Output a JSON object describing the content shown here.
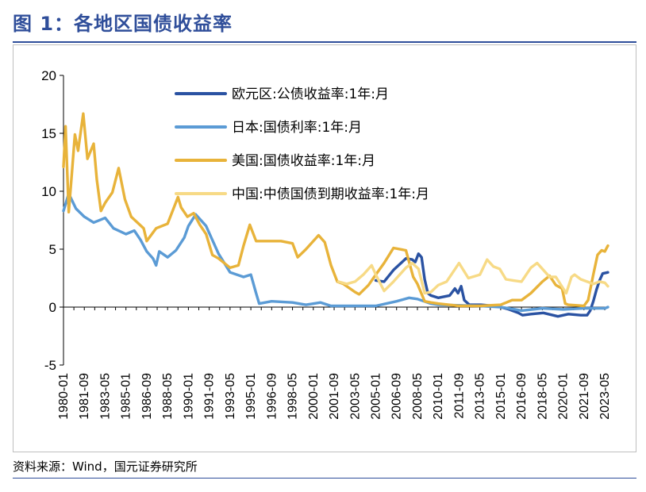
{
  "figure": {
    "title": "图 1：各地区国债收益率",
    "source": "资料来源：Wind，国元证券研究所"
  },
  "chart_data": {
    "type": "line",
    "x_tick_labels": [
      "1980-01",
      "1981-09",
      "1983-05",
      "1985-01",
      "1986-09",
      "1988-05",
      "1990-01",
      "1991-09",
      "1993-05",
      "1995-01",
      "1996-09",
      "1998-05",
      "2000-01",
      "2001-09",
      "2003-05",
      "2005-01",
      "2006-09",
      "2008-05",
      "2010-01",
      "2011-09",
      "2013-05",
      "2015-01",
      "2016-09",
      "2018-05",
      "2020-01",
      "2021-09",
      "2023-05"
    ],
    "y_ticks": [
      20,
      15,
      10,
      5,
      0,
      -5
    ],
    "ylim": [
      -5,
      20
    ],
    "xlim": [
      "1980-01",
      "2023-08"
    ],
    "grid": false,
    "legend_position": "top-right",
    "series": [
      {
        "name": "欧元区:公债收益率:1年:月",
        "color": "#2a52a2",
        "points": [
          [
            "2005-01",
            2.3
          ],
          [
            "2005-09",
            2.2
          ],
          [
            "2006-06",
            3.2
          ],
          [
            "2007-06",
            4.2
          ],
          [
            "2007-12",
            4.1
          ],
          [
            "2008-03",
            3.9
          ],
          [
            "2008-06",
            4.6
          ],
          [
            "2008-09",
            4.3
          ],
          [
            "2008-12",
            2.4
          ],
          [
            "2009-03",
            1.2
          ],
          [
            "2009-06",
            1.0
          ],
          [
            "2010-01",
            0.8
          ],
          [
            "2010-12",
            1.0
          ],
          [
            "2011-05",
            1.6
          ],
          [
            "2011-08",
            1.2
          ],
          [
            "2011-11",
            1.8
          ],
          [
            "2012-02",
            0.6
          ],
          [
            "2012-07",
            0.2
          ],
          [
            "2013-06",
            0.2
          ],
          [
            "2014-06",
            0.1
          ],
          [
            "2015-01",
            0.0
          ],
          [
            "2015-09",
            -0.2
          ],
          [
            "2016-06",
            -0.5
          ],
          [
            "2016-10",
            -0.7
          ],
          [
            "2017-06",
            -0.6
          ],
          [
            "2018-06",
            -0.5
          ],
          [
            "2019-08",
            -0.8
          ],
          [
            "2020-06",
            -0.6
          ],
          [
            "2021-06",
            -0.7
          ],
          [
            "2021-12",
            -0.7
          ],
          [
            "2022-03",
            -0.3
          ],
          [
            "2022-06",
            0.5
          ],
          [
            "2022-09",
            1.5
          ],
          [
            "2022-12",
            2.3
          ],
          [
            "2023-03",
            2.9
          ],
          [
            "2023-08",
            3.0
          ]
        ]
      },
      {
        "name": "日本:国债利率:1年:月",
        "color": "#5b9bd5",
        "points": [
          [
            "1980-01",
            8.3
          ],
          [
            "1980-06",
            9.8
          ],
          [
            "1981-01",
            8.5
          ],
          [
            "1981-09",
            7.8
          ],
          [
            "1982-06",
            7.3
          ],
          [
            "1983-05",
            7.7
          ],
          [
            "1984-01",
            6.8
          ],
          [
            "1985-01",
            6.3
          ],
          [
            "1985-09",
            6.6
          ],
          [
            "1986-03",
            5.8
          ],
          [
            "1986-09",
            4.8
          ],
          [
            "1987-03",
            4.2
          ],
          [
            "1987-06",
            3.6
          ],
          [
            "1987-09",
            4.8
          ],
          [
            "1988-05",
            4.3
          ],
          [
            "1989-01",
            4.9
          ],
          [
            "1989-09",
            6.0
          ],
          [
            "1990-01",
            7.0
          ],
          [
            "1990-08",
            8.0
          ],
          [
            "1990-12",
            7.6
          ],
          [
            "1991-06",
            7.0
          ],
          [
            "1991-09",
            6.4
          ],
          [
            "1992-06",
            4.6
          ],
          [
            "1993-05",
            3.0
          ],
          [
            "1994-06",
            2.6
          ],
          [
            "1995-01",
            2.8
          ],
          [
            "1995-06",
            1.2
          ],
          [
            "1995-09",
            0.3
          ],
          [
            "1996-09",
            0.5
          ],
          [
            "1998-05",
            0.4
          ],
          [
            "1999-06",
            0.2
          ],
          [
            "2000-08",
            0.4
          ],
          [
            "2001-06",
            0.1
          ],
          [
            "2003-05",
            0.1
          ],
          [
            "2005-01",
            0.1
          ],
          [
            "2006-09",
            0.5
          ],
          [
            "2007-09",
            0.8
          ],
          [
            "2008-05",
            0.7
          ],
          [
            "2009-06",
            0.3
          ],
          [
            "2010-01",
            0.2
          ],
          [
            "2013-05",
            0.1
          ],
          [
            "2015-01",
            0.0
          ],
          [
            "2016-03",
            -0.2
          ],
          [
            "2016-09",
            -0.3
          ],
          [
            "2018-05",
            -0.1
          ],
          [
            "2020-01",
            -0.2
          ],
          [
            "2021-09",
            -0.1
          ],
          [
            "2023-05",
            -0.1
          ],
          [
            "2023-08",
            0.0
          ]
        ]
      },
      {
        "name": "美国:国债收益率:1年:月",
        "color": "#e8b33a",
        "points": [
          [
            "1980-01",
            12.1
          ],
          [
            "1980-03",
            15.6
          ],
          [
            "1980-06",
            8.2
          ],
          [
            "1980-09",
            11.5
          ],
          [
            "1980-12",
            14.9
          ],
          [
            "1981-03",
            13.5
          ],
          [
            "1981-08",
            16.7
          ],
          [
            "1981-12",
            12.8
          ],
          [
            "1982-06",
            14.1
          ],
          [
            "1982-09",
            11.0
          ],
          [
            "1983-01",
            8.3
          ],
          [
            "1983-05",
            9.0
          ],
          [
            "1983-12",
            9.9
          ],
          [
            "1984-06",
            12.0
          ],
          [
            "1984-12",
            9.3
          ],
          [
            "1985-06",
            7.8
          ],
          [
            "1986-06",
            6.8
          ],
          [
            "1986-09",
            5.7
          ],
          [
            "1987-06",
            6.8
          ],
          [
            "1988-05",
            7.2
          ],
          [
            "1989-03",
            9.5
          ],
          [
            "1989-06",
            8.6
          ],
          [
            "1989-12",
            7.8
          ],
          [
            "1990-06",
            8.1
          ],
          [
            "1990-12",
            7.1
          ],
          [
            "1991-06",
            6.3
          ],
          [
            "1991-12",
            4.5
          ],
          [
            "1992-06",
            4.2
          ],
          [
            "1993-05",
            3.4
          ],
          [
            "1994-01",
            3.6
          ],
          [
            "1994-06",
            5.3
          ],
          [
            "1994-12",
            7.1
          ],
          [
            "1995-06",
            5.7
          ],
          [
            "1996-06",
            5.7
          ],
          [
            "1997-06",
            5.7
          ],
          [
            "1998-05",
            5.5
          ],
          [
            "1998-10",
            4.3
          ],
          [
            "1999-06",
            5.0
          ],
          [
            "2000-06",
            6.2
          ],
          [
            "2000-12",
            5.6
          ],
          [
            "2001-06",
            3.6
          ],
          [
            "2001-12",
            2.2
          ],
          [
            "2002-06",
            2.0
          ],
          [
            "2003-05",
            1.3
          ],
          [
            "2003-09",
            1.1
          ],
          [
            "2004-06",
            1.9
          ],
          [
            "2005-01",
            2.8
          ],
          [
            "2005-09",
            3.8
          ],
          [
            "2006-06",
            5.1
          ],
          [
            "2007-06",
            4.9
          ],
          [
            "2008-01",
            2.6
          ],
          [
            "2008-05",
            2.0
          ],
          [
            "2008-12",
            0.5
          ],
          [
            "2009-06",
            0.4
          ],
          [
            "2010-01",
            0.3
          ],
          [
            "2011-09",
            0.1
          ],
          [
            "2013-05",
            0.1
          ],
          [
            "2015-01",
            0.2
          ],
          [
            "2015-12",
            0.6
          ],
          [
            "2016-09",
            0.6
          ],
          [
            "2017-06",
            1.2
          ],
          [
            "2018-05",
            2.2
          ],
          [
            "2018-12",
            2.7
          ],
          [
            "2019-06",
            1.9
          ],
          [
            "2019-12",
            1.6
          ],
          [
            "2020-03",
            0.3
          ],
          [
            "2020-06",
            0.2
          ],
          [
            "2021-09",
            0.1
          ],
          [
            "2022-01",
            0.6
          ],
          [
            "2022-06",
            2.8
          ],
          [
            "2022-10",
            4.5
          ],
          [
            "2023-02",
            4.9
          ],
          [
            "2023-05",
            4.8
          ],
          [
            "2023-08",
            5.3
          ]
        ]
      },
      {
        "name": "中国:中债国债到期收益率:1年:月",
        "color": "#f7da86",
        "points": [
          [
            "2002-01",
            2.2
          ],
          [
            "2002-09",
            2.0
          ],
          [
            "2003-05",
            2.2
          ],
          [
            "2004-01",
            2.8
          ],
          [
            "2004-09",
            3.6
          ],
          [
            "2005-01",
            2.8
          ],
          [
            "2005-09",
            1.4
          ],
          [
            "2006-06",
            2.2
          ],
          [
            "2007-06",
            3.4
          ],
          [
            "2007-12",
            3.8
          ],
          [
            "2008-06",
            3.3
          ],
          [
            "2008-12",
            1.2
          ],
          [
            "2009-06",
            1.3
          ],
          [
            "2010-01",
            1.9
          ],
          [
            "2010-09",
            2.2
          ],
          [
            "2011-06",
            3.4
          ],
          [
            "2011-09",
            3.8
          ],
          [
            "2012-06",
            2.5
          ],
          [
            "2013-05",
            2.8
          ],
          [
            "2013-12",
            4.1
          ],
          [
            "2014-06",
            3.5
          ],
          [
            "2014-12",
            3.3
          ],
          [
            "2015-06",
            2.4
          ],
          [
            "2016-01",
            2.3
          ],
          [
            "2016-09",
            2.2
          ],
          [
            "2017-06",
            3.4
          ],
          [
            "2017-12",
            3.8
          ],
          [
            "2018-05",
            3.3
          ],
          [
            "2018-12",
            2.6
          ],
          [
            "2019-06",
            2.6
          ],
          [
            "2020-04",
            1.2
          ],
          [
            "2020-09",
            2.6
          ],
          [
            "2020-12",
            2.8
          ],
          [
            "2021-06",
            2.4
          ],
          [
            "2021-12",
            2.2
          ],
          [
            "2022-06",
            2.0
          ],
          [
            "2022-12",
            2.2
          ],
          [
            "2023-05",
            2.1
          ],
          [
            "2023-08",
            1.8
          ]
        ]
      }
    ]
  }
}
